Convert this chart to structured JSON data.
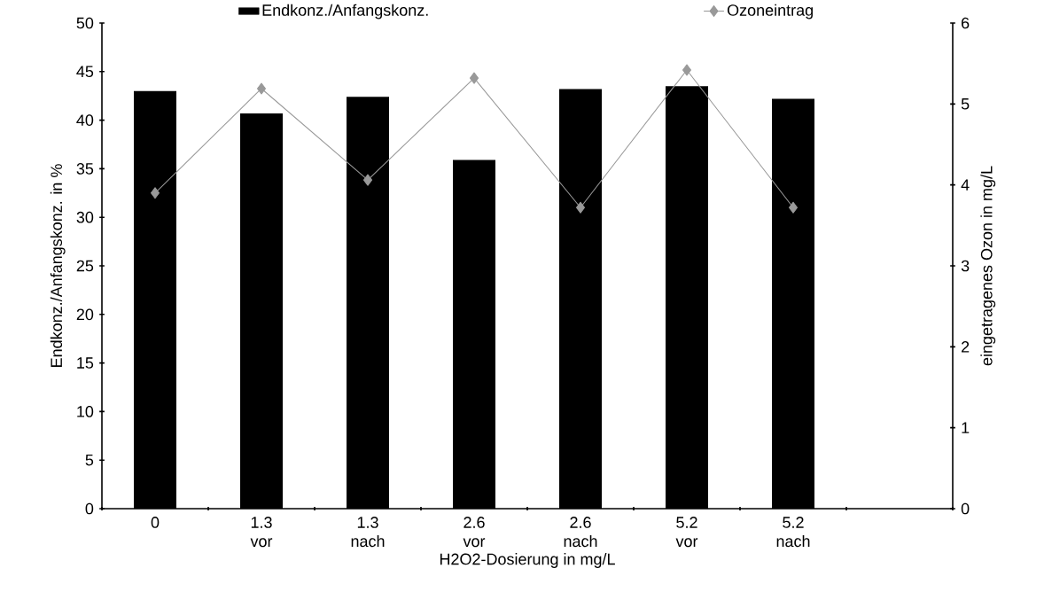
{
  "chart_data": {
    "type": "bar",
    "xlabel": "H2O2-Dosierung in mg/L",
    "ylabel": "Endkonz./Anfangskonz. in %",
    "y2label": "eingetragenes Ozon in mg/L",
    "categories": [
      "0",
      "1.3 vor",
      "1.3 nach",
      "2.6 vor",
      "2.6 nach",
      "5.2 vor",
      "5.2 nach",
      null
    ],
    "series": [
      {
        "name": "Endkonz./Anfangskonz.",
        "color": "#000000",
        "values": [
          43.0,
          40.7,
          42.4,
          35.9,
          43.2,
          43.5,
          42.2,
          null
        ]
      },
      {
        "name": "Ozoneintrag",
        "type": "line",
        "axis": "y2",
        "color": "#999999",
        "marker": "diamond",
        "values": [
          3.9,
          5.19,
          4.06,
          5.32,
          3.72,
          5.42,
          3.72,
          null
        ]
      }
    ],
    "ylim": [
      0,
      50
    ],
    "yticks": [
      0,
      5,
      10,
      15,
      20,
      25,
      30,
      35,
      40,
      45,
      50
    ],
    "y2lim": [
      0,
      6
    ],
    "y2ticks": [
      0,
      1,
      2,
      3,
      4,
      5,
      6
    ],
    "legend": "top"
  }
}
